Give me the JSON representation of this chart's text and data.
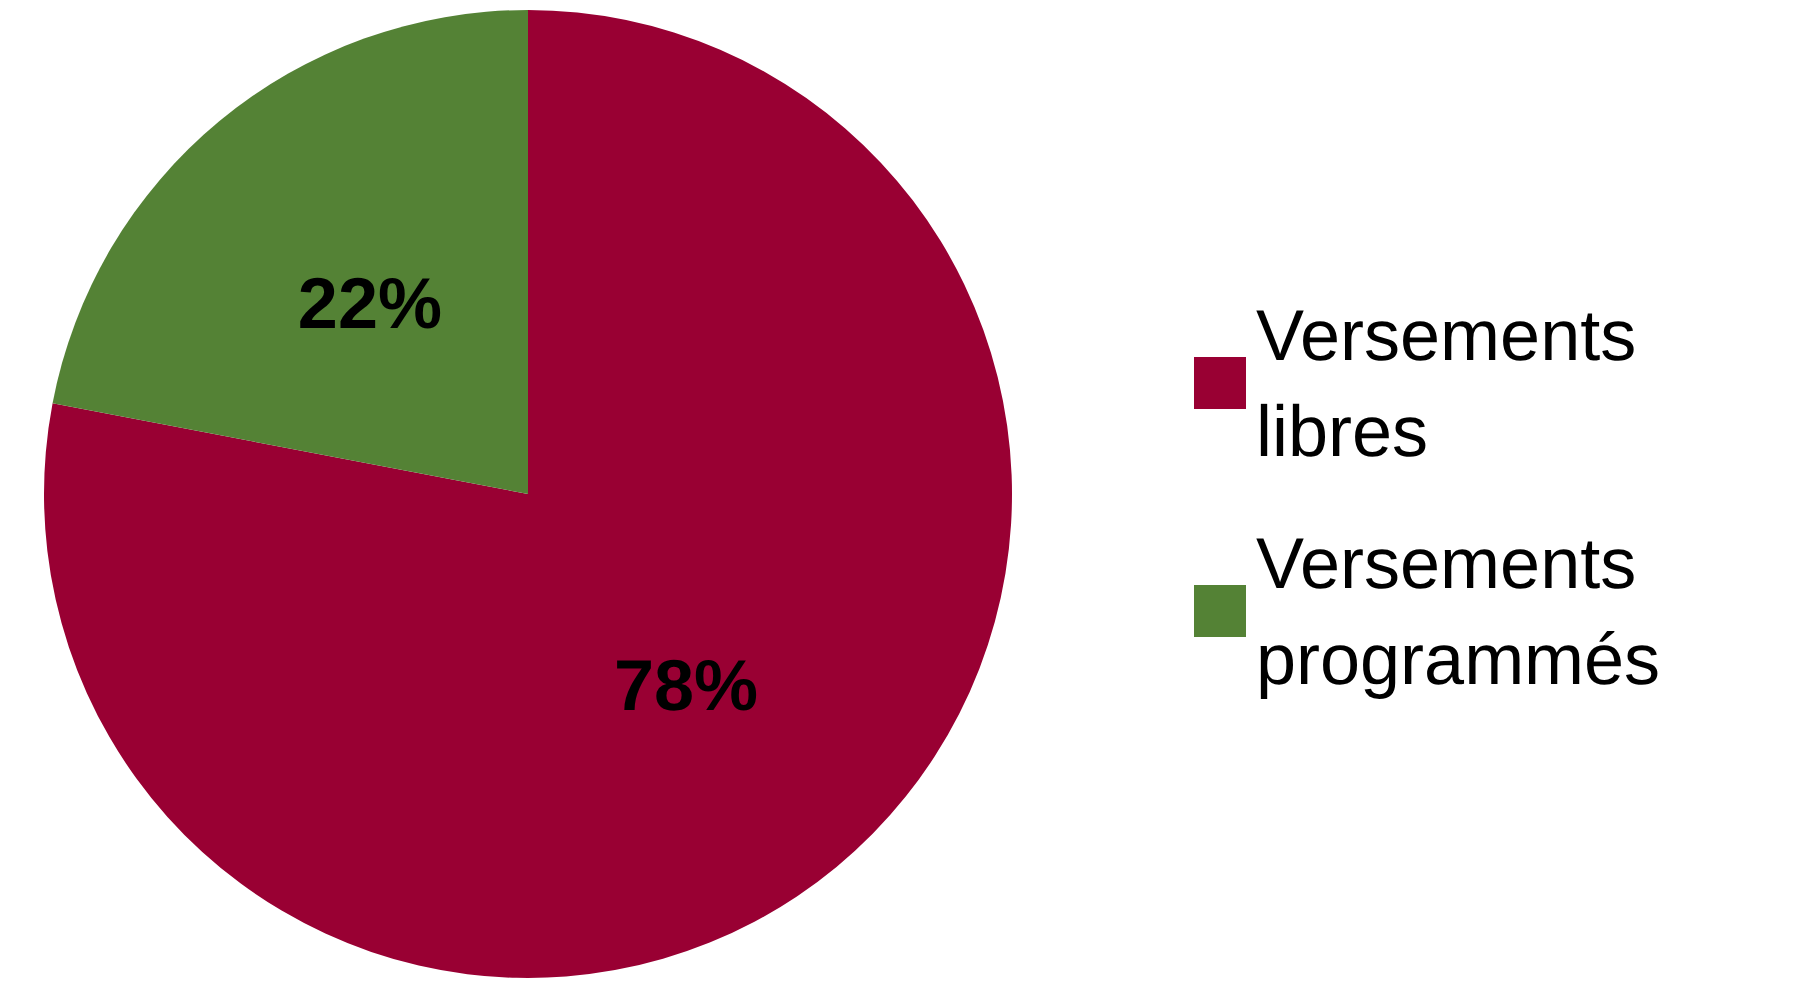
{
  "chart_data": {
    "type": "pie",
    "categories": [
      "Versements libres",
      "Versements programmés"
    ],
    "values": [
      78,
      22
    ],
    "colors": [
      "#990033",
      "#548235"
    ],
    "value_labels": [
      "78%",
      "22%"
    ],
    "legend": "right"
  }
}
